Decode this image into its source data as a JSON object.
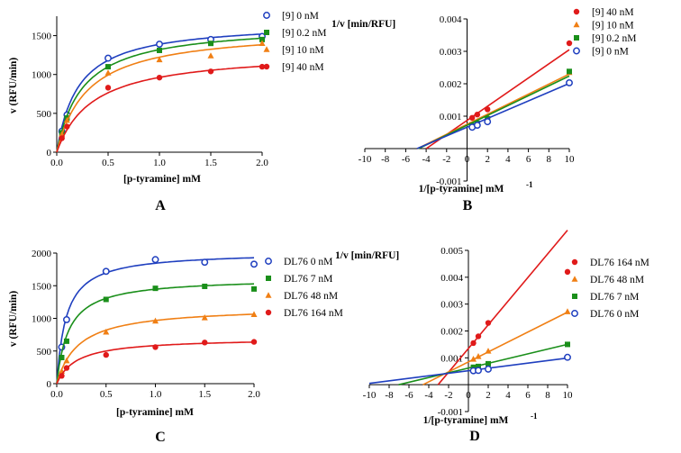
{
  "chart_data": [
    {
      "panel": "A",
      "type": "scatter",
      "xlabel": "[p-tyramine] mM",
      "ylabel": "v (RFU/min)",
      "xlim": [
        0,
        2.0
      ],
      "ylim": [
        0,
        1750
      ],
      "xticks": [
        0,
        0.5,
        1.0,
        1.5,
        2.0
      ],
      "xtick_labels": [
        "0.0",
        "0.5",
        "1.0",
        "1.5",
        "2.0"
      ],
      "yticks": [
        0,
        500,
        1000,
        1500
      ],
      "ytick_labels": [
        "0",
        "500",
        "1000",
        "1500"
      ],
      "legend_position": "right",
      "series": [
        {
          "name": "[9] 0 nM",
          "color": "#1f3fbf",
          "marker": "open-circle",
          "fit": {
            "vmax": 1680,
            "km": 0.21
          },
          "points": [
            {
              "x": 0.05,
              "y": 270
            },
            {
              "x": 0.1,
              "y": 480
            },
            {
              "x": 0.5,
              "y": 1210
            },
            {
              "x": 1.0,
              "y": 1390
            },
            {
              "x": 1.5,
              "y": 1450
            },
            {
              "x": 2.0,
              "y": 1490
            }
          ]
        },
        {
          "name": "[9] 0.2 nM",
          "color": "#1a8f1a",
          "marker": "square",
          "fit": {
            "vmax": 1650,
            "km": 0.25
          },
          "points": [
            {
              "x": 0.05,
              "y": 250
            },
            {
              "x": 0.1,
              "y": 440
            },
            {
              "x": 0.5,
              "y": 1100
            },
            {
              "x": 1.0,
              "y": 1310
            },
            {
              "x": 1.5,
              "y": 1400
            },
            {
              "x": 2.0,
              "y": 1450
            }
          ]
        },
        {
          "name": "[9] 10 nM",
          "color": "#f07f14",
          "marker": "triangle",
          "fit": {
            "vmax": 1590,
            "km": 0.3
          },
          "points": [
            {
              "x": 0.05,
              "y": 230
            },
            {
              "x": 0.1,
              "y": 410
            },
            {
              "x": 0.5,
              "y": 1020
            },
            {
              "x": 1.0,
              "y": 1190
            },
            {
              "x": 1.5,
              "y": 1240
            },
            {
              "x": 2.0,
              "y": 1400
            }
          ]
        },
        {
          "name": "[9] 40 nM",
          "color": "#e01a1a",
          "marker": "filled-circle",
          "fit": {
            "vmax": 1300,
            "km": 0.35
          },
          "points": [
            {
              "x": 0.05,
              "y": 180
            },
            {
              "x": 0.1,
              "y": 330
            },
            {
              "x": 0.5,
              "y": 830
            },
            {
              "x": 1.0,
              "y": 960
            },
            {
              "x": 1.5,
              "y": 1040
            },
            {
              "x": 2.0,
              "y": 1100
            }
          ]
        }
      ]
    },
    {
      "panel": "B",
      "type": "scatter",
      "xlabel": "1/[p-tyramine] mM",
      "xlabel_sup": "-1",
      "ylabel": "1/v [min/RFU]",
      "xlim": [
        -10,
        10
      ],
      "ylim": [
        -0.001,
        0.004
      ],
      "xticks": [
        -10,
        -8,
        -6,
        -4,
        -2,
        0,
        2,
        4,
        6,
        8,
        10
      ],
      "xtick_labels": [
        "-10",
        "-8",
        "-6",
        "-4",
        "-2",
        "0",
        "2",
        "4",
        "6",
        "8",
        "10"
      ],
      "yticks": [
        -0.001,
        0.001,
        0.002,
        0.003,
        0.004
      ],
      "ytick_labels": [
        "-0.001",
        "0.001",
        "0.002",
        "0.003",
        "0.004"
      ],
      "legend_position": "top-right",
      "series": [
        {
          "name": "[9] 40 nM",
          "color": "#e01a1a",
          "marker": "filled-circle",
          "fit": {
            "slope": 0.000218,
            "intercept": 0.00087
          },
          "points": [
            {
              "x": 0.5,
              "y": 0.00095
            },
            {
              "x": 1.0,
              "y": 0.00105
            },
            {
              "x": 2.0,
              "y": 0.00121
            },
            {
              "x": 10,
              "y": 0.00325
            }
          ]
        },
        {
          "name": "[9] 10 nM",
          "color": "#f07f14",
          "marker": "triangle",
          "fit": {
            "slope": 0.000155,
            "intercept": 0.00075
          },
          "points": [
            {
              "x": 0.5,
              "y": 0.00072
            },
            {
              "x": 1.0,
              "y": 0.00084
            },
            {
              "x": 2.0,
              "y": 0.001
            },
            {
              "x": 10,
              "y": 0.00235
            }
          ]
        },
        {
          "name": "[9] 0.2 nM",
          "color": "#1a8f1a",
          "marker": "square",
          "fit": {
            "slope": 0.000152,
            "intercept": 0.00072
          },
          "points": [
            {
              "x": 0.5,
              "y": 0.00071
            },
            {
              "x": 1.0,
              "y": 0.00078
            },
            {
              "x": 2.0,
              "y": 0.00092
            },
            {
              "x": 10,
              "y": 0.00238
            }
          ]
        },
        {
          "name": "[9] 0 nM",
          "color": "#1f3fbf",
          "marker": "open-circle",
          "fit": {
            "slope": 0.000135,
            "intercept": 0.00066
          },
          "points": [
            {
              "x": 0.5,
              "y": 0.00066
            },
            {
              "x": 1.0,
              "y": 0.00072
            },
            {
              "x": 2.0,
              "y": 0.00083
            },
            {
              "x": 10,
              "y": 0.00203
            }
          ]
        }
      ]
    },
    {
      "panel": "C",
      "type": "scatter",
      "xlabel": "[p-tyramine] mM",
      "ylabel": "v (RFU/min)",
      "xlim": [
        0,
        2.0
      ],
      "ylim": [
        0,
        2000
      ],
      "xticks": [
        0,
        0.5,
        1.0,
        1.5,
        2.0
      ],
      "xtick_labels": [
        "0.0",
        "0.5",
        "1.0",
        "1.5",
        "2.0"
      ],
      "yticks": [
        0,
        500,
        1000,
        1500,
        2000
      ],
      "ytick_labels": [
        "0",
        "500",
        "1000",
        "1500",
        "2000"
      ],
      "legend_position": "right",
      "series": [
        {
          "name": "DL76 0 nM",
          "color": "#1f3fbf",
          "marker": "open-circle",
          "fit": {
            "vmax": 2020,
            "km": 0.095
          },
          "points": [
            {
              "x": 0.05,
              "y": 560
            },
            {
              "x": 0.1,
              "y": 980
            },
            {
              "x": 0.5,
              "y": 1720
            },
            {
              "x": 1.0,
              "y": 1900
            },
            {
              "x": 1.5,
              "y": 1860
            },
            {
              "x": 2.0,
              "y": 1830
            }
          ]
        },
        {
          "name": "DL76 7 nM",
          "color": "#1a8f1a",
          "marker": "square",
          "fit": {
            "vmax": 1620,
            "km": 0.12
          },
          "points": [
            {
              "x": 0.05,
              "y": 400
            },
            {
              "x": 0.1,
              "y": 650
            },
            {
              "x": 0.5,
              "y": 1290
            },
            {
              "x": 1.0,
              "y": 1460
            },
            {
              "x": 1.5,
              "y": 1490
            },
            {
              "x": 2.0,
              "y": 1450
            }
          ]
        },
        {
          "name": "DL76 48 nM",
          "color": "#f07f14",
          "marker": "triangle",
          "fit": {
            "vmax": 1180,
            "km": 0.22
          },
          "points": [
            {
              "x": 0.05,
              "y": 190
            },
            {
              "x": 0.1,
              "y": 350
            },
            {
              "x": 0.5,
              "y": 790
            },
            {
              "x": 1.0,
              "y": 960
            },
            {
              "x": 1.5,
              "y": 1010
            },
            {
              "x": 2.0,
              "y": 1060
            }
          ]
        },
        {
          "name": "DL76 164 nM",
          "color": "#e01a1a",
          "marker": "filled-circle",
          "fit": {
            "vmax": 700,
            "km": 0.2
          },
          "points": [
            {
              "x": 0.05,
              "y": 120
            },
            {
              "x": 0.1,
              "y": 240
            },
            {
              "x": 0.5,
              "y": 440
            },
            {
              "x": 1.0,
              "y": 560
            },
            {
              "x": 1.5,
              "y": 630
            },
            {
              "x": 2.0,
              "y": 640
            }
          ]
        }
      ]
    },
    {
      "panel": "D",
      "type": "scatter",
      "xlabel": "1/[p-tyramine] mM",
      "xlabel_sup": "-1",
      "ylabel": "1/v [min/RFU]",
      "xlim": [
        -10,
        10
      ],
      "ylim": [
        -0.001,
        0.005
      ],
      "xticks": [
        -10,
        -8,
        -6,
        -4,
        -2,
        0,
        2,
        4,
        6,
        8,
        10
      ],
      "xtick_labels": [
        "-10",
        "-8",
        "-6",
        "-4",
        "-2",
        "0",
        "2",
        "4",
        "6",
        "8",
        "10"
      ],
      "yticks": [
        -0.001,
        0.001,
        0.002,
        0.003,
        0.004,
        0.005
      ],
      "ytick_labels": [
        "-0.001",
        "0.001",
        "0.002",
        "0.003",
        "0.004",
        "0.005"
      ],
      "legend_position": "top-right",
      "series": [
        {
          "name": "DL76 164 nM",
          "color": "#e01a1a",
          "marker": "filled-circle",
          "fit": {
            "slope": 0.00044,
            "intercept": 0.00135
          },
          "points": [
            {
              "x": 0.5,
              "y": 0.00155
            },
            {
              "x": 1.0,
              "y": 0.0018
            },
            {
              "x": 2.0,
              "y": 0.0023
            },
            {
              "x": 10,
              "y": 0.0042
            }
          ]
        },
        {
          "name": "DL76 48 nM",
          "color": "#f07f14",
          "marker": "triangle",
          "fit": {
            "slope": 0.000185,
            "intercept": 0.00085
          },
          "points": [
            {
              "x": 0.5,
              "y": 0.00095
            },
            {
              "x": 1.0,
              "y": 0.00105
            },
            {
              "x": 2.0,
              "y": 0.00125
            },
            {
              "x": 10,
              "y": 0.00272
            }
          ]
        },
        {
          "name": "DL76 7 nM",
          "color": "#1a8f1a",
          "marker": "square",
          "fit": {
            "slope": 8.8e-05,
            "intercept": 0.00062
          },
          "points": [
            {
              "x": 0.5,
              "y": 0.00065
            },
            {
              "x": 1.0,
              "y": 0.00068
            },
            {
              "x": 2.0,
              "y": 0.00078
            },
            {
              "x": 10,
              "y": 0.0015
            }
          ]
        },
        {
          "name": "DL76 0 nM",
          "color": "#1f3fbf",
          "marker": "open-circle",
          "fit": {
            "slope": 4.7e-05,
            "intercept": 0.00052
          },
          "points": [
            {
              "x": 0.5,
              "y": 0.00052
            },
            {
              "x": 1.0,
              "y": 0.00053
            },
            {
              "x": 2.0,
              "y": 0.00058
            },
            {
              "x": 10,
              "y": 0.00102
            }
          ]
        }
      ]
    }
  ]
}
